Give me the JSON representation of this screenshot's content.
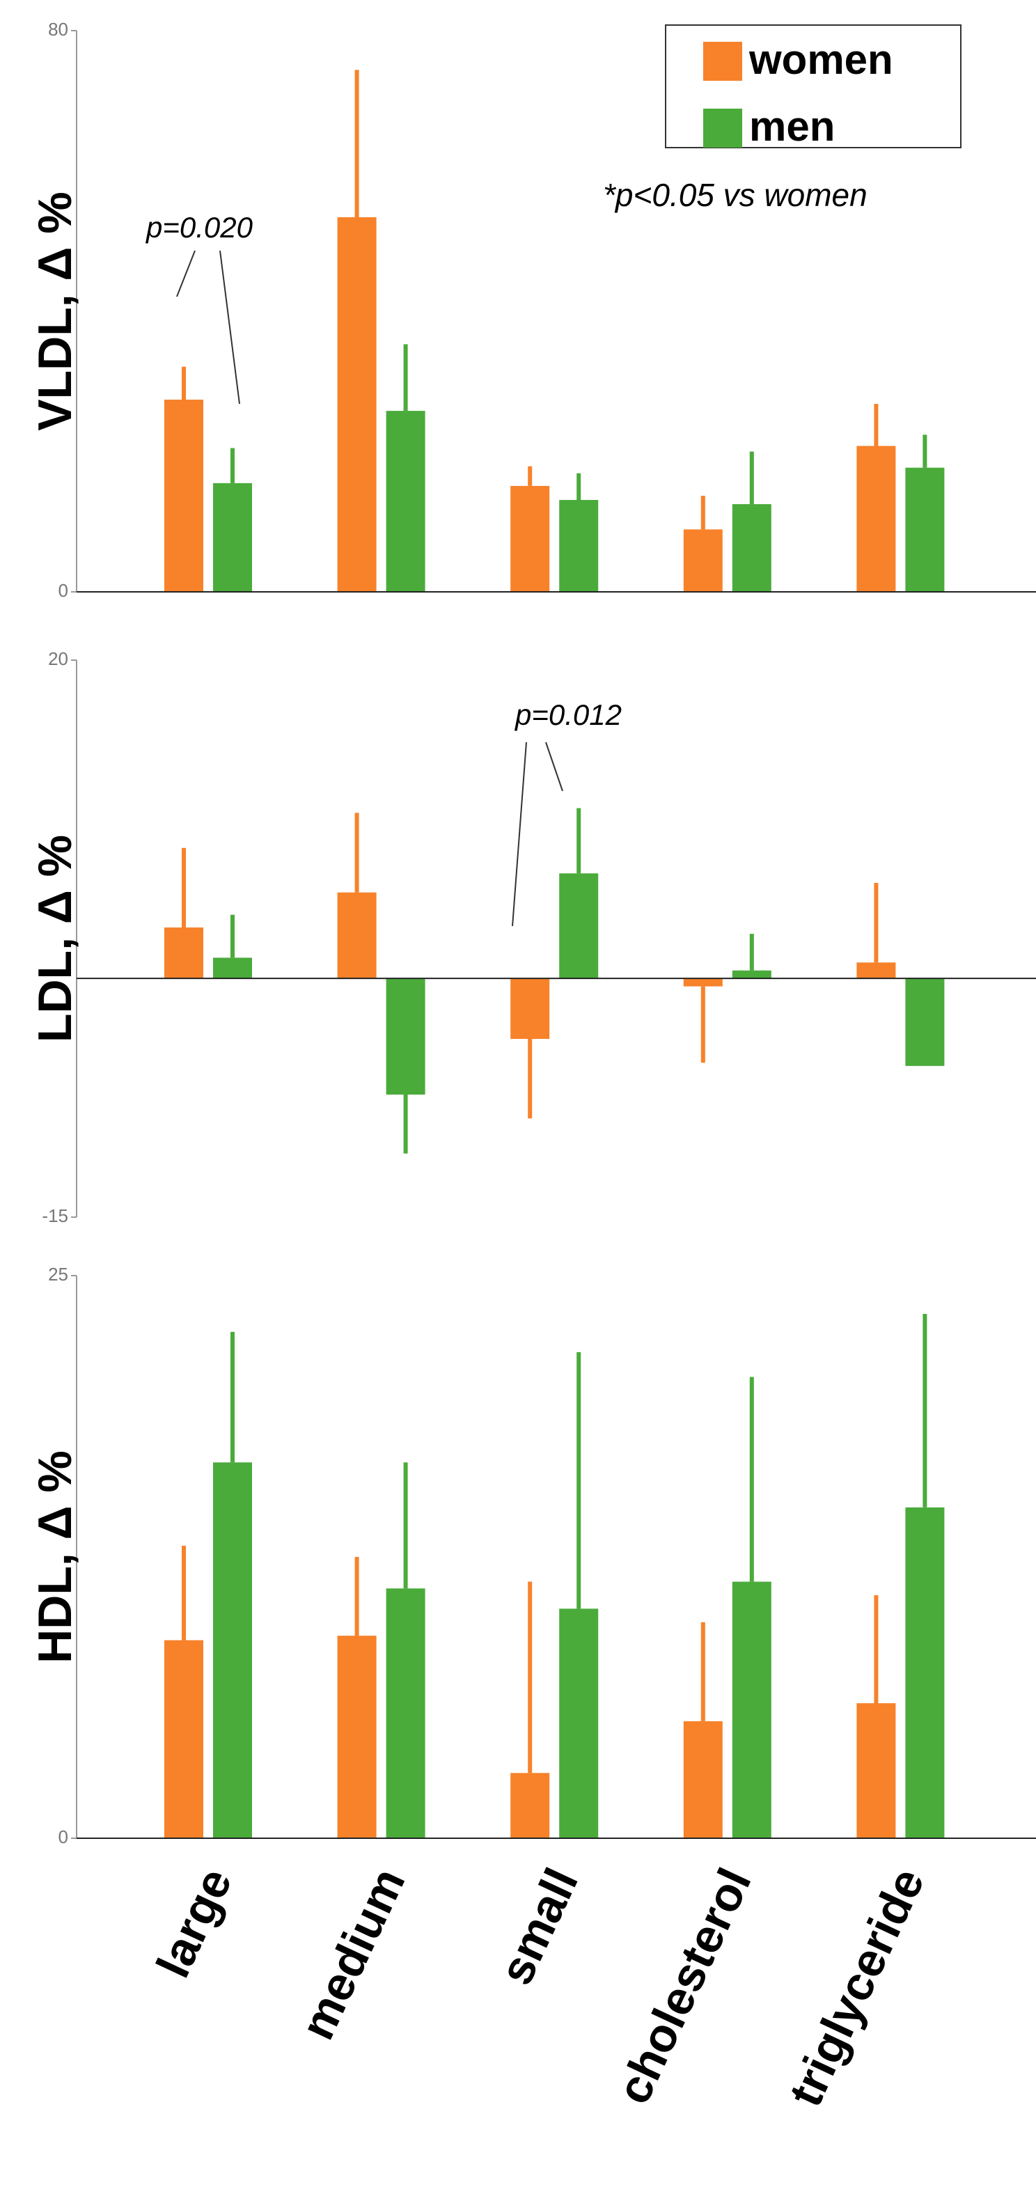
{
  "chart_data": [
    {
      "type": "bar",
      "ylabel": "VLDL, Δ %",
      "ylim": [
        0,
        80
      ],
      "yticks": [
        0,
        80
      ],
      "legend": "top-right",
      "annotations": [
        "p=0.020",
        "*p<0.05 vs women"
      ],
      "series": [
        {
          "name": "women",
          "color": "#f7822a",
          "values": [
            27.4,
            53.4,
            15.1,
            8.9,
            20.8
          ],
          "errors": [
            4.7,
            21,
            2.8,
            4.8,
            6
          ]
        },
        {
          "name": "men",
          "color": "#4aab3b",
          "values": [
            15.5,
            25.8,
            13.1,
            12.5,
            17.7
          ],
          "errors": [
            5,
            9.5,
            3.8,
            7.5,
            4.7
          ]
        }
      ]
    },
    {
      "type": "bar",
      "ylabel": "LDL, Δ %",
      "ylim": [
        -15,
        20
      ],
      "yticks": [
        -15,
        20
      ],
      "annotations": [
        "p=0.012"
      ],
      "series": [
        {
          "color": "#f7822a",
          "values": [
            3.2,
            5.4,
            -3.8,
            -0.5,
            1
          ],
          "errors": [
            5,
            5,
            5,
            4.8,
            5
          ]
        },
        {
          "color": "#4aab3b",
          "values": [
            1.3,
            -7.3,
            6.6,
            0.5,
            -5.5
          ],
          "errors": [
            2.7,
            3.7,
            4.1,
            2.3,
            null
          ]
        }
      ]
    },
    {
      "type": "bar",
      "ylabel": "HDL, Δ %",
      "ylim": [
        0,
        25
      ],
      "yticks": [
        0,
        25
      ],
      "categories": [
        "large",
        "medium",
        "small",
        "cholesterol",
        "triglyceride"
      ],
      "series": [
        {
          "color": "#f7822a",
          "values": [
            8.8,
            9,
            2.9,
            5.2,
            6
          ],
          "errors": [
            4.2,
            3.5,
            8.5,
            4.4,
            4.8
          ]
        },
        {
          "color": "#4aab3b",
          "values": [
            16.7,
            11.1,
            10.2,
            11.4,
            14.7
          ],
          "errors": [
            5.8,
            5.6,
            11.4,
            9.1,
            8.6
          ]
        }
      ]
    }
  ]
}
